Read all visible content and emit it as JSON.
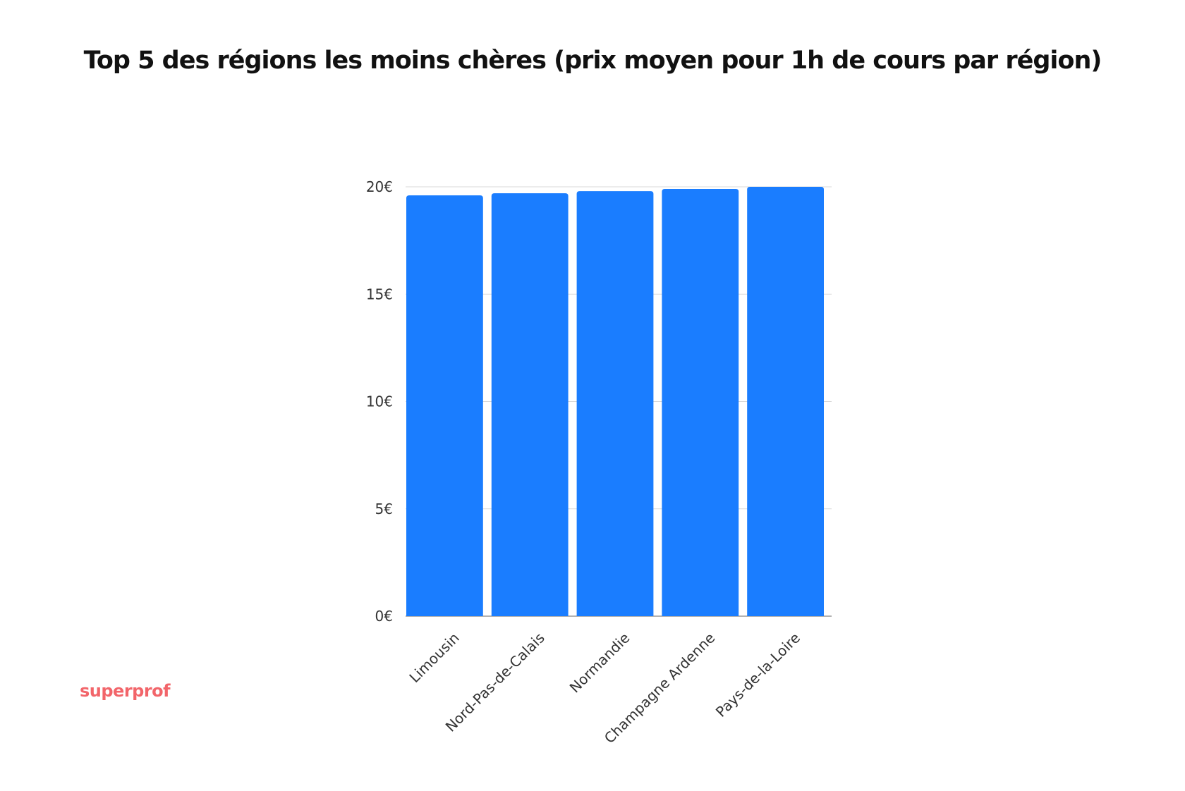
{
  "header": {
    "title": "Top 5 des régions les moins chères (prix moyen pour 1h de cours par région)"
  },
  "brand": {
    "name": "superprof",
    "color": "#f2656a"
  },
  "chart_data": {
    "type": "bar",
    "title": "Top 5 des régions les moins chères (prix moyen pour 1h de cours par région)",
    "categories": [
      "Limousin",
      "Nord-Pas-de-Calais",
      "Normandie",
      "Champagne Ardenne",
      "Pays-de-la-Loire"
    ],
    "values": [
      19.6,
      19.7,
      19.8,
      19.9,
      20.0
    ],
    "unit": "€",
    "yticks": [
      0,
      5,
      10,
      15,
      20
    ],
    "ytick_labels": [
      "0€",
      "5€",
      "10€",
      "15€",
      "20€"
    ],
    "ylim": [
      0,
      20
    ],
    "xlabel": "",
    "ylabel": "",
    "grid": true,
    "bar_color": "#1a7dff",
    "grid_color": "#d9d9d9"
  }
}
